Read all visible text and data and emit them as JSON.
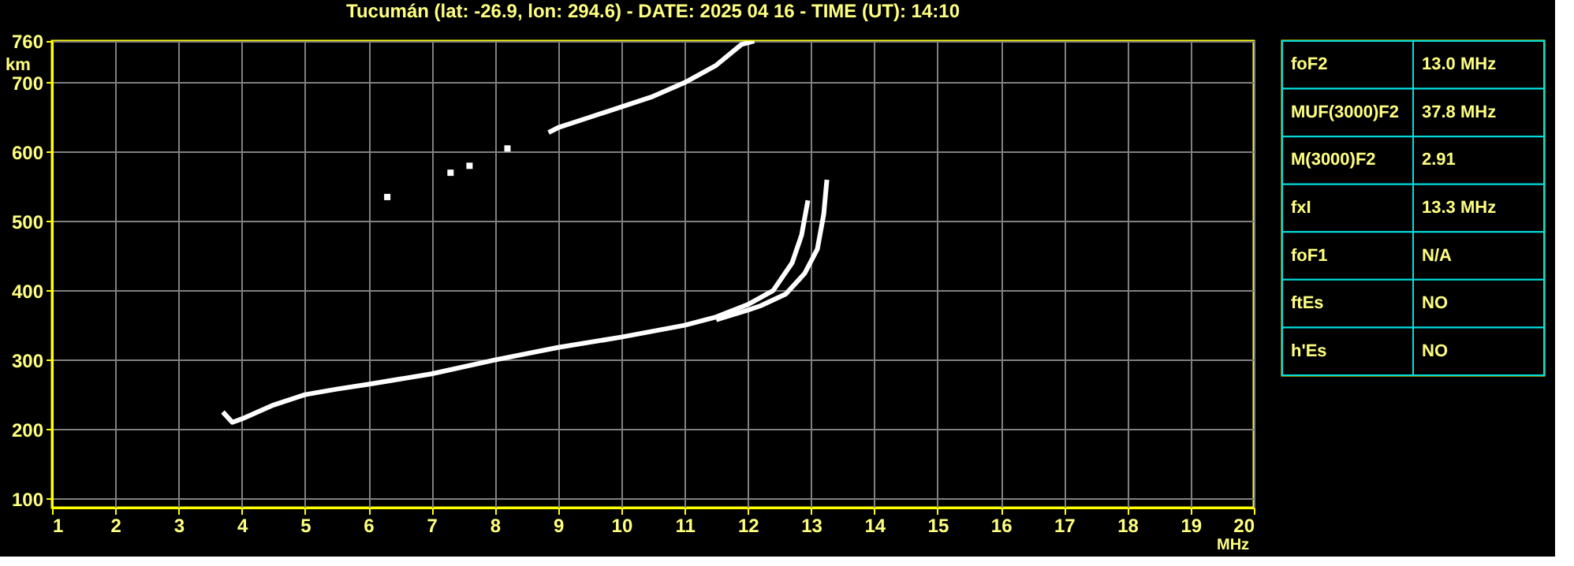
{
  "chart_data": [
    {
      "type": "line",
      "title": "Tucumán (lat: -26.9, lon: 294.6) - DATE: 2025 04 16 - TIME (UT): 14:10",
      "xlabel": "MHz",
      "ylabel": "km",
      "xlim": [
        1,
        20
      ],
      "ylim": [
        87,
        760
      ],
      "xticks": [
        1,
        2,
        3,
        4,
        5,
        6,
        7,
        8,
        9,
        10,
        11,
        12,
        13,
        14,
        15,
        16,
        17,
        18,
        19,
        20
      ],
      "yticks": [
        100,
        200,
        300,
        400,
        500,
        600,
        700,
        760
      ],
      "grid": true,
      "marker": "none",
      "line_style": "solid",
      "series": [
        {
          "color": "#ffffff",
          "x": [
            3.7,
            3.85,
            4,
            4.5,
            5,
            5.5,
            6,
            7,
            8,
            9,
            10,
            11,
            11.5,
            12,
            12.4,
            12.7,
            12.85,
            12.95
          ],
          "values": [
            225,
            210,
            215,
            235,
            250,
            258,
            265,
            280,
            300,
            318,
            333,
            350,
            362,
            380,
            400,
            440,
            480,
            530
          ]
        },
        {
          "color": "#ffffff",
          "x": [
            11.5,
            12,
            12.2,
            12.6,
            12.9,
            13.1,
            13.2,
            13.25
          ],
          "values": [
            358,
            372,
            378,
            395,
            425,
            460,
            510,
            560
          ]
        },
        {
          "color": "#ffffff",
          "type": "scatter",
          "marker": "square",
          "x": [
            6.3,
            7.3,
            7.6,
            8.2
          ],
          "values": [
            535,
            570,
            580,
            605
          ]
        },
        {
          "color": "#ffffff",
          "x": [
            8.85,
            9,
            9.5,
            10,
            10.5,
            11,
            11.5,
            11.9,
            12.1
          ],
          "values": [
            628,
            635,
            650,
            665,
            680,
            700,
            725,
            755,
            760
          ]
        }
      ]
    },
    {
      "type": "other",
      "categories": [
        "foF2",
        "MUF(3000)F2",
        "M(3000)F2",
        "fxI",
        "foF1",
        "ftEs",
        "h'Es"
      ],
      "value_labels": [
        "13.0 MHz",
        "37.8 MHz",
        "2.91",
        "13.3 MHz",
        "N/A",
        "NO",
        "NO"
      ]
    }
  ]
}
